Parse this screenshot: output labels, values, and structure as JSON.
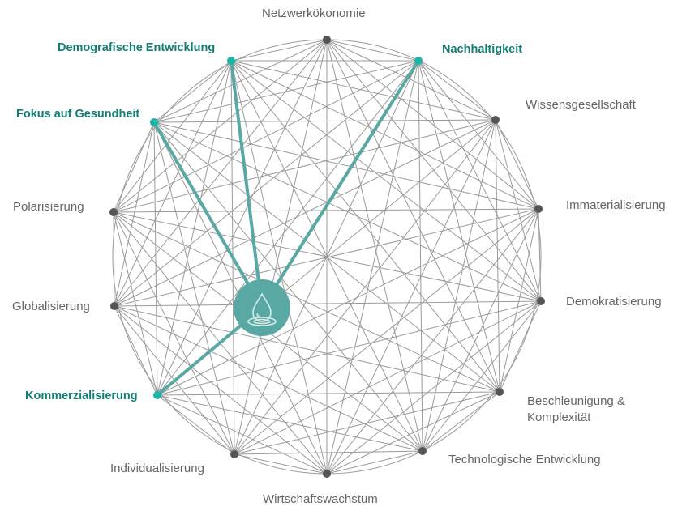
{
  "colors": {
    "highlight": "#1cb5a8",
    "highlight_text": "#137d74",
    "hub": "#5aa8a4",
    "node": "#555555",
    "edge": "#9a9a9a"
  },
  "hub": {
    "icon": "water-drop-icon"
  },
  "nodes": [
    {
      "label": "Netzwerkökonomie",
      "highlighted": false
    },
    {
      "label": "Nachhaltigkeit",
      "highlighted": true
    },
    {
      "label": "Wissensgesellschaft",
      "highlighted": false
    },
    {
      "label": "Immaterialisierung",
      "highlighted": false
    },
    {
      "label": "Demokratisierung",
      "highlighted": false
    },
    {
      "label": "Beschleunigung &",
      "label2": "Komplexität",
      "highlighted": false
    },
    {
      "label": "Technologische Entwicklung",
      "highlighted": false
    },
    {
      "label": "Wirtschaftswachstum",
      "highlighted": false
    },
    {
      "label": "Individualisierung",
      "highlighted": false
    },
    {
      "label": "Kommerzialisierung",
      "highlighted": true
    },
    {
      "label": "Globalisierung",
      "highlighted": false
    },
    {
      "label": "Polarisierung",
      "highlighted": false
    },
    {
      "label": "Fokus auf Gesundheit",
      "highlighted": true
    },
    {
      "label": "Demografische Entwicklung",
      "highlighted": true
    }
  ]
}
